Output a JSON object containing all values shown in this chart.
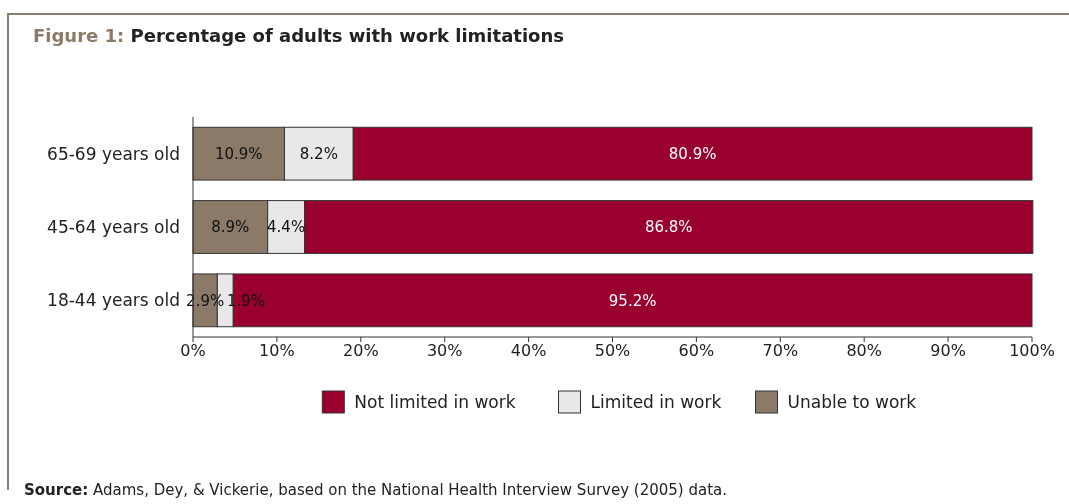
{
  "chart_data": {
    "type": "bar",
    "title": "Figure 1:  Percentage of adults with work limitations",
    "categories": [
      "65-69 years old",
      "45-64 years old",
      "18-44 years old"
    ],
    "series": [
      {
        "name": "Unable to work",
        "color": "#8c7a68",
        "values": [
          10.9,
          8.9,
          2.9
        ],
        "value_labels": [
          "10.9%",
          "8.9%",
          "2.9%"
        ]
      },
      {
        "name": "Limited in work",
        "color": "#e8e8e8",
        "values": [
          8.2,
          4.4,
          1.9
        ],
        "value_labels": [
          "8.2%",
          "4.4%",
          "1.9%"
        ]
      },
      {
        "name": "Not limited in work",
        "color": "#99002e",
        "values": [
          80.9,
          86.8,
          95.2
        ],
        "value_labels": [
          "80.9%",
          "86.8%",
          "95.2%"
        ]
      }
    ],
    "stacked": true,
    "orientation": "horizontal",
    "legend": "bottom",
    "xlim": [
      0,
      100
    ],
    "xticks": [
      {
        "value": 0,
        "label": "0%"
      },
      {
        "value": 10,
        "label": "10%"
      },
      {
        "value": 20,
        "label": "20%"
      },
      {
        "value": 30,
        "label": "30%"
      },
      {
        "value": 40,
        "label": "40%"
      },
      {
        "value": 50,
        "label": "50%"
      },
      {
        "value": 60,
        "label": "60%"
      },
      {
        "value": 70,
        "label": "70%"
      },
      {
        "value": 80,
        "label": "80%"
      },
      {
        "value": 90,
        "label": "90%"
      },
      {
        "value": 100,
        "label": "100%"
      }
    ],
    "annotations": [
      "Source: Adams, Dey, & Vickerie, based on the National Health Interview Survey (2005) data."
    ]
  }
}
